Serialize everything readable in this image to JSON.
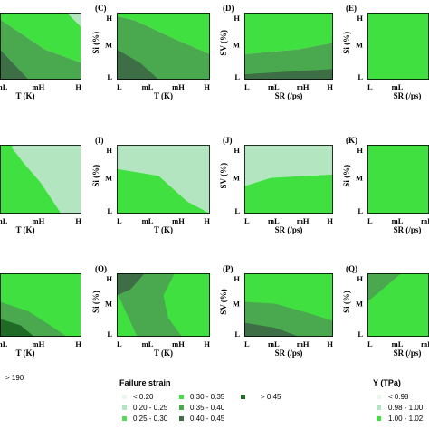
{
  "colors": {
    "lt020": "#e8f8ec",
    "c020_025": "#b3e6c0",
    "c025_030": "#58d85a",
    "c030_035": "#3fe03f",
    "c035_040": "#4aa84e",
    "c040_045": "#3d6e45",
    "gt045": "#1f6b25",
    "y_lt098": "#e8f8ec",
    "y_098_100": "#b3e6c0",
    "y_100_102": "#3fe03f"
  },
  "chart_data": [
    {
      "type": "heatmap",
      "panel": "",
      "xlabel": "T (K)",
      "ylabel": "",
      "xticks": [
        "mL",
        "mH",
        "H"
      ],
      "yticks": [],
      "regions": [
        "0.20 - 0.25",
        "0.30 - 0.35",
        "0.35 - 0.40",
        "0.40 - 0.45"
      ]
    },
    {
      "type": "heatmap",
      "panel": "(C)",
      "xlabel": "T (K)",
      "ylabel": "Si (%)",
      "xticks": [
        "L",
        "mL",
        "mH",
        "H"
      ],
      "yticks": [
        "H",
        "M",
        "L"
      ],
      "regions": [
        "0.30 - 0.35",
        "0.35 - 0.40",
        "0.40 - 0.45"
      ]
    },
    {
      "type": "heatmap",
      "panel": "(D)",
      "xlabel": "SR (/ps)",
      "ylabel": "SV (%)",
      "xticks": [
        "L",
        "mL",
        "mH",
        "H"
      ],
      "yticks": [
        "H",
        "M",
        "L"
      ],
      "regions": [
        "0.30 - 0.35",
        "0.35 - 0.40",
        "0.40 - 0.45"
      ]
    },
    {
      "type": "heatmap",
      "panel": "(E)",
      "xlabel": "SR (/ps)",
      "ylabel": "Si (%)",
      "xticks": [
        "L",
        "mL"
      ],
      "yticks": [
        "H",
        "M",
        "L"
      ],
      "regions": [
        "0.30 - 0.35"
      ]
    },
    {
      "type": "heatmap",
      "panel": "",
      "xlabel": "T (K)",
      "ylabel": "",
      "xticks": [
        "mL",
        "mH",
        "H"
      ],
      "yticks": [],
      "regions": [
        "0.98 - 1.00",
        "1.00 - 1.02"
      ]
    },
    {
      "type": "heatmap",
      "panel": "(I)",
      "xlabel": "T (K)",
      "ylabel": "Si (%)",
      "xticks": [
        "L",
        "mL",
        "mH",
        "H"
      ],
      "yticks": [
        "H",
        "M",
        "L"
      ],
      "regions": [
        "0.98 - 1.00",
        "1.00 - 1.02"
      ]
    },
    {
      "type": "heatmap",
      "panel": "(J)",
      "xlabel": "SR (/ps)",
      "ylabel": "SV (%)",
      "xticks": [
        "L",
        "mL",
        "mH",
        "H"
      ],
      "yticks": [
        "H",
        "M",
        "L"
      ],
      "regions": [
        "0.98 - 1.00",
        "1.00 - 1.02"
      ]
    },
    {
      "type": "heatmap",
      "panel": "(K)",
      "xlabel": "SR (/ps)",
      "ylabel": "Si (%)",
      "xticks": [
        "L",
        "mL",
        "mH"
      ],
      "yticks": [
        "H",
        "M",
        "L"
      ],
      "regions": [
        "1.00 - 1.02"
      ]
    },
    {
      "type": "heatmap",
      "panel": "",
      "xlabel": "T (K)",
      "ylabel": "",
      "xticks": [
        "mL",
        "mH",
        "H"
      ],
      "yticks": [],
      "regions": [
        "0.30 - 0.35",
        "0.35 - 0.40",
        "> 0.45"
      ]
    },
    {
      "type": "heatmap",
      "panel": "(O)",
      "xlabel": "T (K)",
      "ylabel": "Si (%)",
      "xticks": [
        "L",
        "mL",
        "mH",
        "H"
      ],
      "yticks": [
        "H",
        "M",
        "L"
      ],
      "regions": [
        "0.30 - 0.35",
        "0.35 - 0.40",
        "0.40 - 0.45"
      ]
    },
    {
      "type": "heatmap",
      "panel": "(P)",
      "xlabel": "SR (/ps)",
      "ylabel": "SV (%)",
      "xticks": [
        "L",
        "mL",
        "mH",
        "H"
      ],
      "yticks": [
        "H",
        "M",
        "L"
      ],
      "regions": [
        "0.30 - 0.35",
        "0.35 - 0.40",
        "0.40 - 0.45"
      ]
    },
    {
      "type": "heatmap",
      "panel": "(Q)",
      "xlabel": "SR (/ps)",
      "ylabel": "Si (%)",
      "xticks": [
        "L",
        "mL",
        "mH"
      ],
      "yticks": [
        "H",
        "M",
        "L"
      ],
      "regions": [
        "0.30 - 0.35",
        "0.35 - 0.40"
      ]
    }
  ],
  "legends": {
    "left_partial": {
      "items": [
        "> 190"
      ]
    },
    "failure_strain": {
      "title": "Failure strain",
      "items": [
        "< 0.20",
        "0.20 - 0.25",
        "0.25 - 0.30",
        "0.30 - 0.35",
        "0.35 - 0.40",
        "0.40 - 0.45",
        "> 0.45"
      ]
    },
    "y_tpa": {
      "title": "Y (TPa)",
      "items": [
        "< 0.98",
        "0.98 - 1.00",
        "1.00 - 1.02"
      ]
    }
  }
}
